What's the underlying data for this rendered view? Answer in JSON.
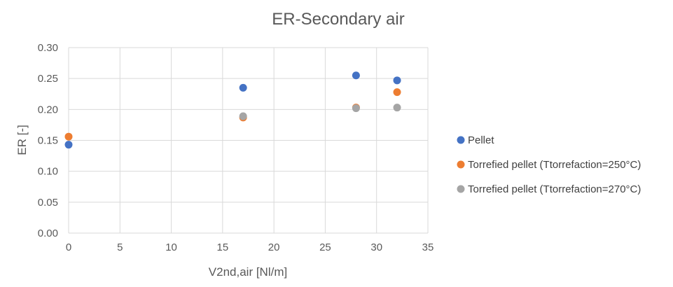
{
  "chart_data": {
    "type": "scatter",
    "title": "ER-Secondary air",
    "xlabel": "V2nd,air  [Nl/m]",
    "ylabel": "ER [-]",
    "xlim": [
      0,
      35
    ],
    "ylim": [
      0,
      0.3
    ],
    "x_ticks": [
      "0",
      "5",
      "10",
      "15",
      "20",
      "25",
      "30",
      "35"
    ],
    "y_ticks": [
      "0.00",
      "0.05",
      "0.10",
      "0.15",
      "0.20",
      "0.25",
      "0.30"
    ],
    "grid": true,
    "legend_position": "right",
    "series": [
      {
        "name": "Pellet",
        "color": "#4472c4",
        "points": [
          [
            0,
            0.143
          ],
          [
            17,
            0.235
          ],
          [
            28,
            0.255
          ],
          [
            32,
            0.247
          ]
        ]
      },
      {
        "name": "Torrefied pellet (Ttorrefaction=250°C)",
        "color": "#ed7d31",
        "points": [
          [
            0,
            0.156
          ],
          [
            17,
            0.187
          ],
          [
            28,
            0.203
          ],
          [
            32,
            0.228
          ]
        ]
      },
      {
        "name": "Torrefied pellet (Ttorrefaction=270°C)",
        "color": "#a5a5a5",
        "points": [
          [
            17,
            0.189
          ],
          [
            28,
            0.202
          ],
          [
            32,
            0.203
          ]
        ]
      }
    ]
  }
}
